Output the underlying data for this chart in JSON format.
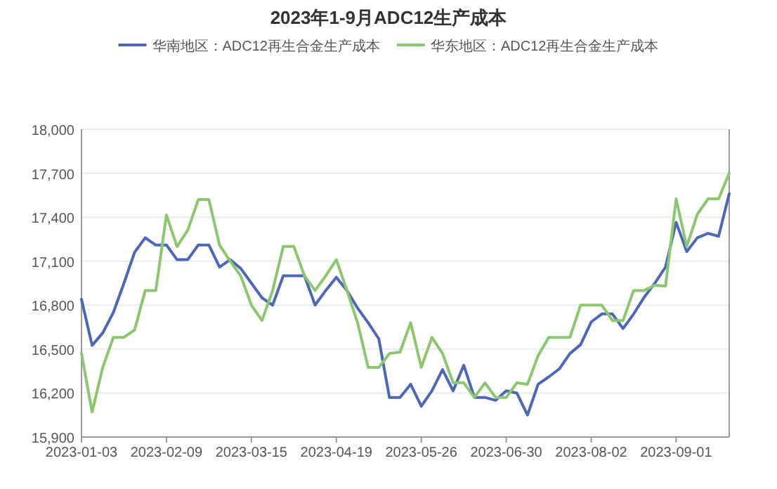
{
  "chart_data": {
    "type": "line",
    "title": "2023年1-9月ADC12生产成本",
    "categories": [
      "2023-01-03",
      null,
      null,
      null,
      null,
      null,
      null,
      null,
      "2023-02-09",
      null,
      null,
      null,
      null,
      null,
      null,
      null,
      "2023-03-15",
      null,
      null,
      null,
      null,
      null,
      null,
      null,
      "2023-04-19",
      null,
      null,
      null,
      null,
      null,
      null,
      null,
      "2023-05-26",
      null,
      null,
      null,
      null,
      null,
      null,
      null,
      "2023-06-30",
      null,
      null,
      null,
      null,
      null,
      null,
      null,
      "2023-08-02",
      null,
      null,
      null,
      null,
      null,
      null,
      null,
      "2023-09-01",
      null,
      null,
      null,
      null,
      null
    ],
    "series": [
      {
        "name": "华南地区：ADC12再生合金生产成本",
        "color": "#4e66b8",
        "values": [
          16840,
          16525,
          16610,
          16750,
          16950,
          17160,
          17260,
          17210,
          17210,
          17110,
          17110,
          17210,
          17210,
          17060,
          17110,
          17050,
          16950,
          16850,
          16800,
          17000,
          17000,
          17000,
          16800,
          16900,
          16990,
          16900,
          16780,
          16680,
          16570,
          16170,
          16170,
          16260,
          16110,
          16215,
          16360,
          16215,
          16390,
          16170,
          16170,
          16150,
          16215,
          16200,
          16050,
          16260,
          16310,
          16365,
          16470,
          16530,
          16685,
          16740,
          16740,
          16640,
          16740,
          16855,
          16950,
          17060,
          17365,
          17165,
          17260,
          17290,
          17270,
          17560
        ]
      },
      {
        "name": "华东地区：ADC12再生合金生产成本",
        "color": "#8cc66e",
        "values": [
          16470,
          16070,
          16375,
          16580,
          16580,
          16630,
          16900,
          16900,
          17415,
          17200,
          17310,
          17520,
          17520,
          17210,
          17100,
          17000,
          16800,
          16695,
          16900,
          17200,
          17200,
          17000,
          16900,
          17000,
          17110,
          16900,
          16680,
          16375,
          16375,
          16470,
          16480,
          16680,
          16375,
          16580,
          16470,
          16270,
          16270,
          16170,
          16270,
          16170,
          16170,
          16270,
          16260,
          16455,
          16580,
          16580,
          16580,
          16800,
          16800,
          16800,
          16695,
          16695,
          16900,
          16900,
          16935,
          16930,
          17525,
          17200,
          17420,
          17525,
          17525,
          17700
        ]
      }
    ],
    "ylim": [
      15900,
      18000
    ],
    "yticks": [
      {
        "value": 15900,
        "label": "15,900"
      },
      {
        "value": 16200,
        "label": "16,200"
      },
      {
        "value": 16500,
        "label": "16,500"
      },
      {
        "value": 16800,
        "label": "16,800"
      },
      {
        "value": 17100,
        "label": "17,100"
      },
      {
        "value": 17400,
        "label": "17,400"
      },
      {
        "value": 17700,
        "label": "17,700"
      },
      {
        "value": 18000,
        "label": "18,000"
      }
    ],
    "grid": "y",
    "legend": "top"
  }
}
